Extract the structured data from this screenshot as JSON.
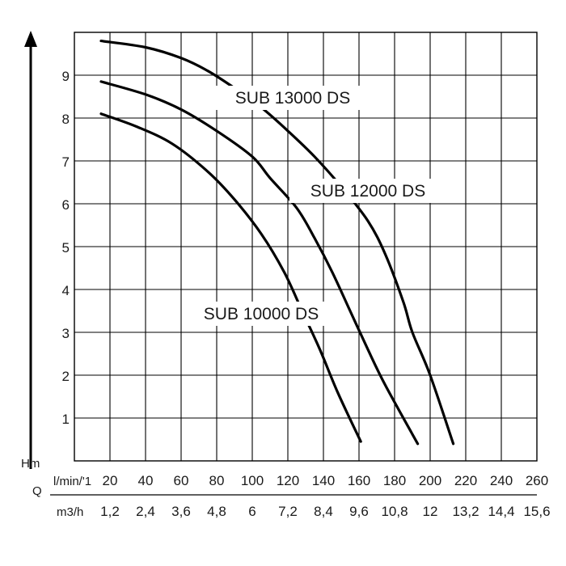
{
  "chart_data": {
    "type": "line",
    "ylabel": "Hm",
    "xlabel": "Q",
    "y_ticks": [
      1,
      2,
      3,
      4,
      5,
      6,
      7,
      8,
      9
    ],
    "ylim": [
      0,
      10
    ],
    "xlim": [
      0,
      260
    ],
    "grid": true,
    "x_axis_lmin": {
      "unit": "l/min/'1",
      "ticks": [
        "20",
        "40",
        "60",
        "80",
        "100",
        "120",
        "140",
        "160",
        "180",
        "200",
        "220",
        "240",
        "260"
      ]
    },
    "x_axis_m3h": {
      "unit": "m3/h",
      "ticks": [
        "1,2",
        "2,4",
        "3,6",
        "4,8",
        "6",
        "7,2",
        "8,4",
        "9,6",
        "10,8",
        "12",
        "13,2",
        "14,4",
        "15,6"
      ]
    },
    "series": [
      {
        "name": "SUB 13000 DS",
        "points": [
          [
            15,
            9.8
          ],
          [
            40,
            9.65
          ],
          [
            60,
            9.4
          ],
          [
            75,
            9.1
          ],
          [
            90,
            8.7
          ],
          [
            105,
            8.25
          ],
          [
            120,
            7.7
          ],
          [
            135,
            7.1
          ],
          [
            150,
            6.4
          ],
          [
            165,
            5.6
          ],
          [
            175,
            4.8
          ],
          [
            185,
            3.7
          ],
          [
            190,
            3.0
          ],
          [
            200,
            2.0
          ],
          [
            213,
            0.4
          ]
        ]
      },
      {
        "name": "SUB 12000 DS",
        "points": [
          [
            15,
            8.85
          ],
          [
            40,
            8.55
          ],
          [
            60,
            8.2
          ],
          [
            80,
            7.7
          ],
          [
            100,
            7.1
          ],
          [
            110,
            6.6
          ],
          [
            125,
            5.9
          ],
          [
            135,
            5.2
          ],
          [
            145,
            4.4
          ],
          [
            155,
            3.5
          ],
          [
            165,
            2.6
          ],
          [
            175,
            1.75
          ],
          [
            193,
            0.4
          ]
        ]
      },
      {
        "name": "SUB 10000 DS",
        "points": [
          [
            15,
            8.1
          ],
          [
            35,
            7.8
          ],
          [
            55,
            7.4
          ],
          [
            75,
            6.75
          ],
          [
            90,
            6.1
          ],
          [
            105,
            5.3
          ],
          [
            118,
            4.4
          ],
          [
            128,
            3.5
          ],
          [
            138,
            2.6
          ],
          [
            148,
            1.6
          ],
          [
            161,
            0.45
          ]
        ]
      }
    ]
  }
}
